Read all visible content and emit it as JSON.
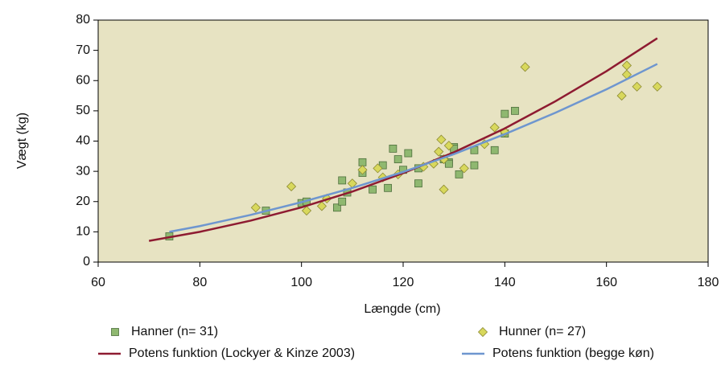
{
  "chart_data": {
    "type": "scatter",
    "xlabel": "Længde (cm)",
    "ylabel": "Vægt (kg)",
    "xlim": [
      60,
      180
    ],
    "xticks": [
      60,
      80,
      100,
      120,
      140,
      160,
      180
    ],
    "ylim": [
      0,
      80
    ],
    "yticks": [
      0,
      10,
      20,
      30,
      40,
      50,
      60,
      70,
      80
    ],
    "grid": false,
    "plot_background": "#e7e3c2",
    "series": [
      {
        "name": "Hanner (n= 31)",
        "kind": "marker",
        "marker": "square",
        "color": "#8fb870",
        "edge_color": "#4d6e3c",
        "x": [
          74,
          93,
          100,
          101,
          107,
          108,
          108,
          109,
          112,
          112,
          114,
          116,
          117,
          118,
          119,
          120,
          121,
          123,
          123,
          128,
          129,
          130,
          131,
          134,
          134,
          138,
          140,
          140,
          142,
          130,
          129
        ],
        "values": [
          8.5,
          17,
          19.5,
          20,
          18,
          27,
          20,
          23,
          33,
          29.5,
          24,
          32,
          24.5,
          37.5,
          34,
          30.5,
          36,
          31,
          26,
          34,
          33,
          38,
          29,
          37,
          32,
          37,
          49,
          42.5,
          50,
          37.5,
          32.5
        ]
      },
      {
        "name": "Hunner (n= 27)",
        "kind": "marker",
        "marker": "diamond",
        "color": "#d8d85c",
        "edge_color": "#8c8a34",
        "x": [
          91,
          98,
          101,
          104,
          105,
          110,
          112,
          115,
          116,
          119,
          124,
          126,
          127,
          127.5,
          128,
          128,
          129,
          132,
          136,
          138,
          144,
          163,
          164,
          164,
          166,
          170,
          140
        ],
        "values": [
          18,
          25,
          17,
          18.5,
          21,
          26,
          30.5,
          31,
          28,
          29,
          31.5,
          32.5,
          36.5,
          40.5,
          24,
          34,
          38.5,
          31,
          39,
          44.5,
          64.5,
          55,
          65,
          62,
          58,
          58,
          43
        ]
      },
      {
        "name": "Potens funktion (Lockyer & Kinze 2003)",
        "kind": "line",
        "color": "#8e1b31",
        "x": [
          70,
          80,
          90,
          100,
          110,
          120,
          130,
          140,
          150,
          160,
          170
        ],
        "values": [
          7,
          10,
          13.7,
          18.1,
          23.3,
          29.4,
          36.3,
          44.2,
          53.2,
          63.1,
          74
        ]
      },
      {
        "name": "Potens funktion (begge køn)",
        "kind": "line",
        "color": "#6e96cf",
        "x": [
          74,
          80,
          90,
          100,
          110,
          120,
          130,
          140,
          150,
          160,
          170
        ],
        "values": [
          10,
          11.9,
          15.6,
          19.8,
          24.5,
          29.8,
          35.7,
          42.3,
          49.4,
          57.1,
          65.5
        ]
      }
    ]
  }
}
